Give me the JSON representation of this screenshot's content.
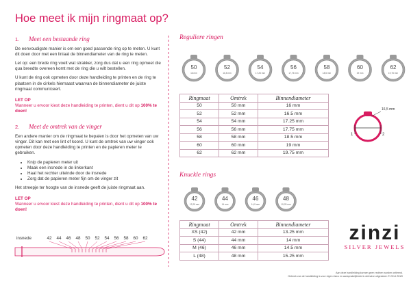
{
  "title": "Hoe meet ik mijn ringmaat op?",
  "section1": {
    "heading_number": "1.",
    "heading": "Meet een bestaande ring",
    "paragraphs": [
      "De eenvoudigste manier is om een goed passende ring op te meten. U kunt dit doen door met een liniaal de binnendiameter van de ring te meten.",
      "Let op: een brede ring voelt wat strakker, zorg dus dat u een ring opmeet die qua breedte overeen komt met de ring die u wilt bestellen.",
      "U kunt de ring ook opmeten door deze handleiding te printen en de ring te plaatsen in de cirkels hiernaast waarvan de binnendiameter de juiste ringmaat communiceert."
    ],
    "note": {
      "title": "LET OP",
      "text": [
        "Wanneer u ervoor kiest deze handleiding te printen, dient u dit op ",
        "100%",
        " te doen!"
      ]
    }
  },
  "section2": {
    "heading_number": "2.",
    "heading": "Meet de omtrek van de vinger",
    "intro": "Een andere manier om de ringmaat te bepalen is door het opmeten van uw vinger. Dit kan met een lint of koord. U kunt de omtrek van uw vinger ook opmeten door deze handleiding te printen en de papieren meter te gebruiken.",
    "steps": [
      "Knip de papieren meter uit",
      "Maak een insnede in de linkerkant",
      "Haal het rechter uiteinde door de insnede",
      "Zorg dat de papieren meter fijn om de vinger zit"
    ],
    "outro": "Het streepje ter hoogte van de insnede geeft de juiste ringmaat aan.",
    "note": {
      "title": "LET OP",
      "text": [
        "Wanneer u ervoor kiest deze handleiding te printen, dient u dit op ",
        "100%",
        " te doen!"
      ]
    }
  },
  "meter": {
    "label": "insnede",
    "sizes": [
      "42",
      "44",
      "46",
      "48",
      "50",
      "52",
      "54",
      "56",
      "58",
      "60",
      "62"
    ]
  },
  "regular": {
    "heading": "Reguliere ringen",
    "circles": [
      {
        "size": "50",
        "diameter": "16 mm"
      },
      {
        "size": "52",
        "diameter": "16,5 mm"
      },
      {
        "size": "54",
        "diameter": "17,25 mm"
      },
      {
        "size": "56",
        "diameter": "17,75 mm"
      },
      {
        "size": "58",
        "diameter": "18,5 mm"
      },
      {
        "size": "60",
        "diameter": "19 mm"
      },
      {
        "size": "62",
        "diameter": "19,75 mm"
      }
    ],
    "table": {
      "header": [
        "Ringmaat",
        "Omtrek",
        "Binnendiameter"
      ],
      "rows": [
        [
          "50",
          "50 mm",
          "16 mm"
        ],
        [
          "52",
          "52 mm",
          "16.5 mm"
        ],
        [
          "54",
          "54 mm",
          "17.25 mm"
        ],
        [
          "56",
          "56 mm",
          "17.75 mm"
        ],
        [
          "58",
          "58 mm",
          "18.5 mm"
        ],
        [
          "60",
          "60 mm",
          "19 mm"
        ],
        [
          "62",
          "62 mm",
          "19.75 mm"
        ]
      ]
    }
  },
  "diagram": {
    "measure": "16,5 mm",
    "labels": [
      "1",
      "2"
    ]
  },
  "knuckle": {
    "heading": "Knuckle rings",
    "circles": [
      {
        "size": "42",
        "diameter": "13,25 mm"
      },
      {
        "size": "44",
        "diameter": "14 mm"
      },
      {
        "size": "46",
        "diameter": "14,5 mm"
      },
      {
        "size": "48",
        "diameter": "15,25 mm"
      }
    ],
    "table": {
      "header": [
        "Ringmaat",
        "Omtrek",
        "Binnendiameter"
      ],
      "rows": [
        [
          "XS (42)",
          "42 mm",
          "13.25 mm"
        ],
        [
          "S (44)",
          "44 mm",
          "14 mm"
        ],
        [
          "M (46)",
          "46 mm",
          "14.5 mm"
        ],
        [
          "L (48)",
          "48 mm",
          "15.25 mm"
        ]
      ]
    }
  },
  "logo": {
    "name": "zinzi",
    "tagline": "SILVER JEWELS"
  },
  "footer": [
    "Aan deze handleiding kunnen geen rechten worden ontleend.",
    "Gebruik van de handleiding is voor eigen risico en aansprakelijkheid is derhalve uitgesloten © 2014 ZINZI"
  ]
}
